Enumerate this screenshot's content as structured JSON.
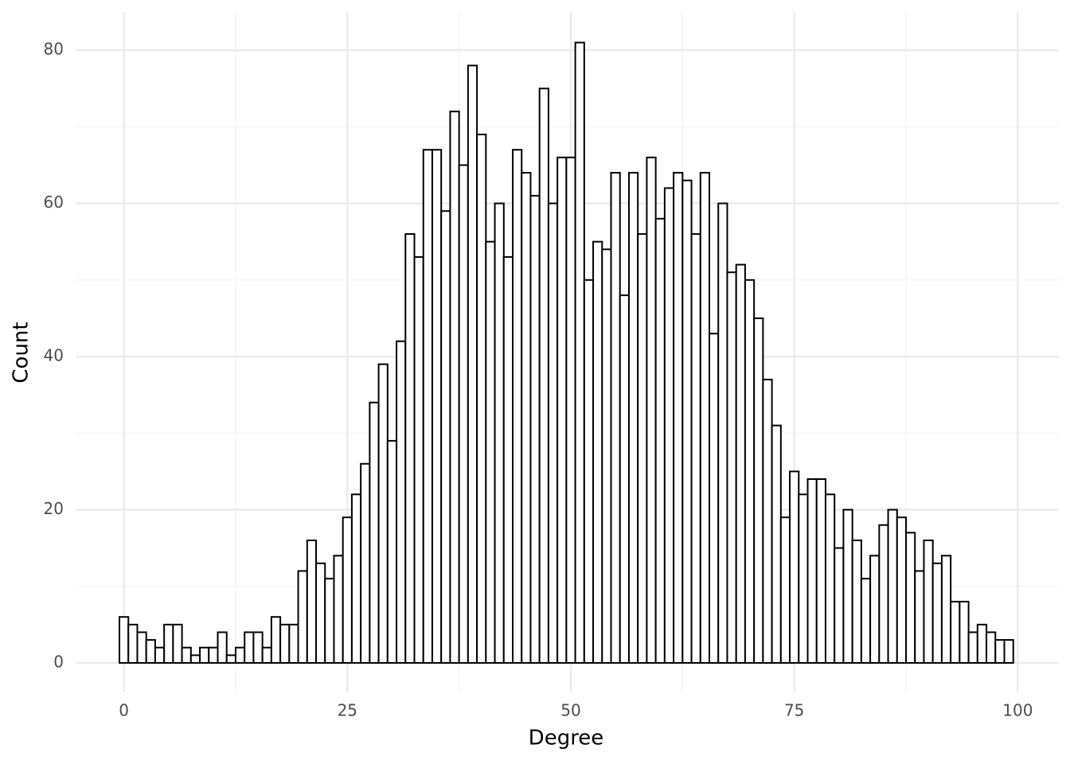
{
  "chart_data": {
    "type": "histogram",
    "x_label": "Degree",
    "y_label": "Count",
    "bins": [
      -0.5,
      0.5,
      1.5,
      2.5,
      3.5,
      4.5,
      5.5,
      6.5,
      7.5,
      8.5,
      9.5,
      10.5,
      11.5,
      12.5,
      13.5,
      14.5,
      15.5,
      16.5,
      17.5,
      18.5,
      19.5,
      20.5,
      21.5,
      22.5,
      23.5,
      24.5,
      25.5,
      26.5,
      27.5,
      28.5,
      29.5,
      30.5,
      31.5,
      32.5,
      33.5,
      34.5,
      35.5,
      36.5,
      37.5,
      38.5,
      39.5,
      40.5,
      41.5,
      42.5,
      43.5,
      44.5,
      45.5,
      46.5,
      47.5,
      48.5,
      49.5,
      50.5,
      51.5,
      52.5,
      53.5,
      54.5,
      55.5,
      56.5,
      57.5,
      58.5,
      59.5,
      60.5,
      61.5,
      62.5,
      63.5,
      64.5,
      65.5,
      66.5,
      67.5,
      68.5,
      69.5,
      70.5,
      71.5,
      72.5,
      73.5,
      74.5,
      75.5,
      76.5,
      77.5,
      78.5,
      79.5,
      80.5,
      81.5,
      82.5,
      83.5,
      84.5,
      85.5,
      86.5,
      87.5,
      88.5,
      89.5,
      90.5,
      91.5,
      92.5,
      93.5,
      94.5,
      95.5,
      96.5,
      97.5,
      98.5,
      99.5
    ],
    "values": [
      6,
      5,
      4,
      3,
      2,
      5,
      5,
      2,
      1,
      2,
      2,
      4,
      1,
      2,
      4,
      4,
      2,
      6,
      5,
      5,
      12,
      16,
      13,
      11,
      14,
      19,
      22,
      26,
      34,
      39,
      29,
      42,
      56,
      53,
      67,
      67,
      59,
      72,
      65,
      78,
      69,
      55,
      60,
      53,
      67,
      64,
      61,
      75,
      60,
      66,
      66,
      81,
      50,
      55,
      54,
      64,
      48,
      64,
      56,
      66,
      58,
      62,
      64,
      63,
      56,
      64,
      43,
      60,
      51,
      52,
      50,
      45,
      37,
      31,
      19,
      25,
      22,
      24,
      24,
      22,
      15,
      20,
      16,
      11,
      14,
      18,
      20,
      19,
      17,
      12,
      16,
      13,
      14,
      8,
      8,
      4,
      5,
      4,
      3,
      3
    ],
    "fill": "#ffffff",
    "stroke": "#000000",
    "xlim": [
      -5.4,
      104.6
    ],
    "ylim": [
      -3.85,
      85
    ],
    "xticks": [
      0,
      25,
      50,
      75,
      100
    ],
    "yticks": [
      0,
      20,
      40,
      60,
      80
    ],
    "grid": true
  }
}
